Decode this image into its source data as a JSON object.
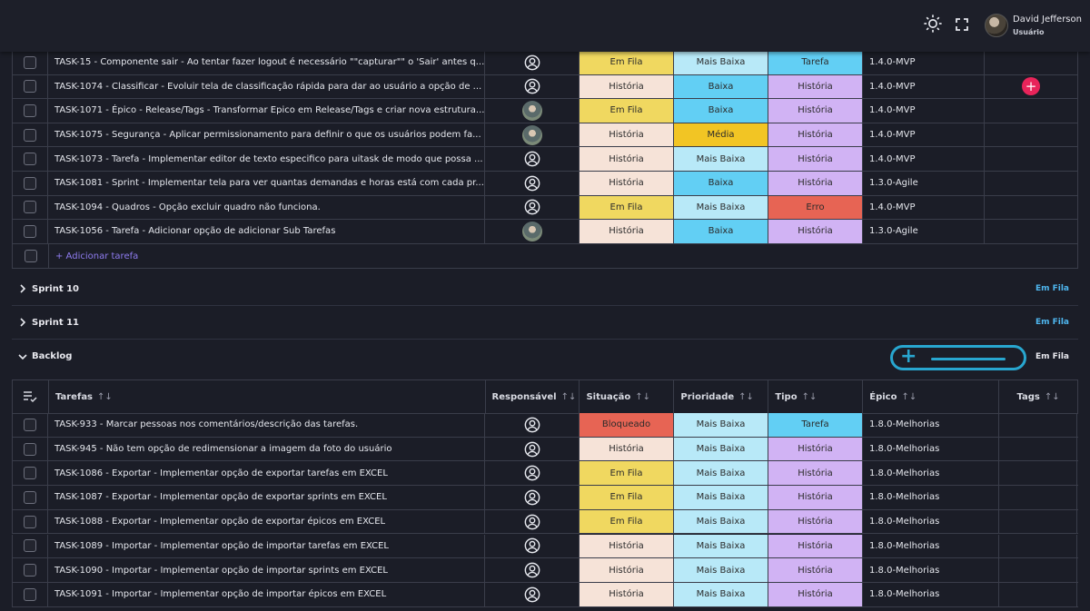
{
  "user": {
    "name": "David Jefferson",
    "role": "Usuário"
  },
  "sprint_rows": [
    {
      "task": "TASK-15 - Componente sair - Ao tentar fazer logout é necessário \"\"capturar\"\" o 'Sair' antes q...",
      "owner": "none",
      "status": "Em Fila",
      "status_cls": "s-fila",
      "priority": "Mais Baixa",
      "priority_cls": "p-maisbaixa",
      "type": "Tarefa",
      "type_cls": "t-tarefa",
      "epic": "1.4.0-MVP"
    },
    {
      "task": "TASK-1074 - Classificar - Evoluir tela de classificação rápida para dar ao usuário a opção de ...",
      "owner": "none",
      "status": "História",
      "status_cls": "s-hist",
      "priority": "Baixa",
      "priority_cls": "p-baixa",
      "type": "História",
      "type_cls": "t-hist",
      "epic": "1.4.0-MVP",
      "add": true
    },
    {
      "task": "TASK-1071 - Épico - Release/Tags - Transformar Epico em Release/Tags e criar nova estrutura...",
      "owner": "photo",
      "status": "Em Fila",
      "status_cls": "s-fila",
      "priority": "Baixa",
      "priority_cls": "p-baixa",
      "type": "História",
      "type_cls": "t-hist",
      "epic": "1.4.0-MVP"
    },
    {
      "task": "TASK-1075 - Segurança - Aplicar permissionamento para definir o que os usuários podem fa...",
      "owner": "photo",
      "status": "História",
      "status_cls": "s-hist",
      "priority": "Média",
      "priority_cls": "p-media",
      "type": "História",
      "type_cls": "t-hist",
      "epic": "1.4.0-MVP"
    },
    {
      "task": "TASK-1073 - Tarefa - Implementar editor de texto especifico para uitask de modo que possa ...",
      "owner": "none",
      "status": "História",
      "status_cls": "s-hist",
      "priority": "Mais Baixa",
      "priority_cls": "p-maisbaixa",
      "type": "História",
      "type_cls": "t-hist",
      "epic": "1.4.0-MVP"
    },
    {
      "task": "TASK-1081 - Sprint - Implementar tela para ver quantas demandas e horas está com cada pr...",
      "owner": "none",
      "status": "História",
      "status_cls": "s-hist",
      "priority": "Baixa",
      "priority_cls": "p-baixa",
      "type": "História",
      "type_cls": "t-hist",
      "epic": "1.3.0-Agile"
    },
    {
      "task": "TASK-1094 - Quadros - Opção excluir quadro não funciona.",
      "owner": "none",
      "status": "Em Fila",
      "status_cls": "s-fila",
      "priority": "Mais Baixa",
      "priority_cls": "p-maisbaixa",
      "type": "Erro",
      "type_cls": "t-erro",
      "epic": "1.4.0-MVP"
    },
    {
      "task": "TASK-1056 - Tarefa - Adicionar opção de adicionar Sub Tarefas",
      "owner": "photo",
      "status": "História",
      "status_cls": "s-hist",
      "priority": "Baixa",
      "priority_cls": "p-baixa",
      "type": "História",
      "type_cls": "t-hist",
      "epic": "1.3.0-Agile"
    }
  ],
  "add_task_label": "+ Adicionar tarefa",
  "add_plus": "+",
  "sections": [
    {
      "name": "Sprint 10",
      "status": "Em Fila"
    },
    {
      "name": "Sprint 11",
      "status": "Em Fila"
    },
    {
      "name": "Backlog",
      "status": "Em Fila"
    }
  ],
  "headers": {
    "tasks": "Tarefas",
    "owner": "Responsável",
    "status": "Situação",
    "priority": "Prioridade",
    "type": "Tipo",
    "epic": "Épico",
    "tags": "Tags",
    "sort": "↑↓"
  },
  "backlog_rows": [
    {
      "task": "TASK-933 - Marcar pessoas nos comentários/descrição das tarefas.",
      "status": "Bloqueado",
      "status_cls": "s-bloq",
      "priority": "Mais Baixa",
      "priority_cls": "p-maisbaixa",
      "type": "Tarefa",
      "type_cls": "t-tarefa",
      "epic": "1.8.0-Melhorias"
    },
    {
      "task": "TASK-945 - Não tem opção de redimensionar a imagem da foto do usuário",
      "status": "História",
      "status_cls": "s-hist",
      "priority": "Mais Baixa",
      "priority_cls": "p-maisbaixa",
      "type": "História",
      "type_cls": "t-hist",
      "epic": "1.8.0-Melhorias"
    },
    {
      "task": "TASK-1086 - Exportar - Implementar opção de exportar tarefas em EXCEL",
      "status": "Em Fila",
      "status_cls": "s-fila",
      "priority": "Mais Baixa",
      "priority_cls": "p-maisbaixa",
      "type": "História",
      "type_cls": "t-hist",
      "epic": "1.8.0-Melhorias"
    },
    {
      "task": "TASK-1087 - Exportar - Implementar opção de exportar sprints em EXCEL",
      "status": "Em Fila",
      "status_cls": "s-fila",
      "priority": "Mais Baixa",
      "priority_cls": "p-maisbaixa",
      "type": "História",
      "type_cls": "t-hist",
      "epic": "1.8.0-Melhorias"
    },
    {
      "task": "TASK-1088 - Exportar - Implementar opção de exportar épicos em EXCEL",
      "status": "Em Fila",
      "status_cls": "s-fila",
      "priority": "Mais Baixa",
      "priority_cls": "p-maisbaixa",
      "type": "História",
      "type_cls": "t-hist",
      "epic": "1.8.0-Melhorias"
    },
    {
      "task": "TASK-1089 - Importar - Implementar opção de importar tarefas em EXCEL",
      "status": "História",
      "status_cls": "s-hist",
      "priority": "Mais Baixa",
      "priority_cls": "p-maisbaixa",
      "type": "História",
      "type_cls": "t-hist",
      "epic": "1.8.0-Melhorias"
    },
    {
      "task": "TASK-1090 - Importar - Implementar opção de importar sprints em EXCEL",
      "status": "História",
      "status_cls": "s-hist",
      "priority": "Mais Baixa",
      "priority_cls": "p-maisbaixa",
      "type": "História",
      "type_cls": "t-hist",
      "epic": "1.8.0-Melhorias"
    },
    {
      "task": "TASK-1091 - Importar - Implementar opção de importar épicos em EXCEL",
      "status": "História",
      "status_cls": "s-hist",
      "priority": "Mais Baixa",
      "priority_cls": "p-maisbaixa",
      "type": "História",
      "type_cls": "t-hist",
      "epic": "1.8.0-Melhorias"
    }
  ]
}
